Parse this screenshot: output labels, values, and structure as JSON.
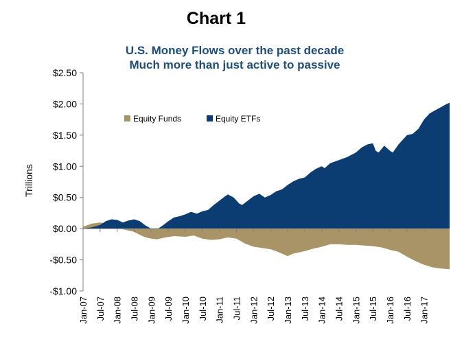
{
  "heading": "Chart 1",
  "chart_data": {
    "type": "area",
    "title": "U.S. Money Flows over the past decade",
    "subtitle": "Much more than just active to passive",
    "ylabel": "Trillions",
    "xlabel": "",
    "ylim": [
      -1.0,
      2.5
    ],
    "yticks": [
      2.5,
      2.0,
      1.5,
      1.0,
      0.5,
      0.0,
      -0.5,
      -1.0
    ],
    "ytick_labels": [
      "$2.50",
      "$2.00",
      "$1.50",
      "$1.00",
      "$0.50",
      "$0.00",
      "-$0.50",
      "-$1.00"
    ],
    "xticks": [
      "Jan-07",
      "Jul-07",
      "Jan-08",
      "Jul-08",
      "Jan-09",
      "Jul-09",
      "Jan-10",
      "Jul-10",
      "Jan-11",
      "Jul-11",
      "Jan-12",
      "Jul-12",
      "Jan-13",
      "Jul-13",
      "Jan-14",
      "Jul-14",
      "Jan-15",
      "Jul-15",
      "Jan-16",
      "Jul-16",
      "Jan-17"
    ],
    "grid": false,
    "legend_position": "upper-left",
    "series": [
      {
        "name": "Equity Funds",
        "color": "#A89467",
        "points": [
          [
            "Jan-07",
            0.03
          ],
          [
            "Apr-07",
            0.08
          ],
          [
            "Jul-07",
            0.1
          ],
          [
            "Sep-07",
            0.08
          ],
          [
            "Dec-07",
            0.02
          ],
          [
            "Apr-08",
            -0.02
          ],
          [
            "Jul-08",
            -0.05
          ],
          [
            "Sep-08",
            -0.1
          ],
          [
            "Nov-08",
            -0.14
          ],
          [
            "Jan-09",
            -0.16
          ],
          [
            "Mar-09",
            -0.17
          ],
          [
            "Jun-09",
            -0.14
          ],
          [
            "Sep-09",
            -0.12
          ],
          [
            "Jan-10",
            -0.13
          ],
          [
            "Apr-10",
            -0.11
          ],
          [
            "Jul-10",
            -0.16
          ],
          [
            "Oct-10",
            -0.18
          ],
          [
            "Jan-11",
            -0.17
          ],
          [
            "Apr-11",
            -0.14
          ],
          [
            "Jul-11",
            -0.16
          ],
          [
            "Oct-11",
            -0.24
          ],
          [
            "Jan-12",
            -0.29
          ],
          [
            "Apr-12",
            -0.31
          ],
          [
            "Jul-12",
            -0.33
          ],
          [
            "Oct-12",
            -0.38
          ],
          [
            "Jan-13",
            -0.44
          ],
          [
            "Mar-13",
            -0.4
          ],
          [
            "Jul-13",
            -0.36
          ],
          [
            "Oct-13",
            -0.32
          ],
          [
            "Jan-14",
            -0.29
          ],
          [
            "Apr-14",
            -0.25
          ],
          [
            "Jul-14",
            -0.25
          ],
          [
            "Oct-14",
            -0.26
          ],
          [
            "Jan-15",
            -0.26
          ],
          [
            "Apr-15",
            -0.27
          ],
          [
            "Jul-15",
            -0.28
          ],
          [
            "Oct-15",
            -0.3
          ],
          [
            "Jan-16",
            -0.34
          ],
          [
            "Apr-16",
            -0.37
          ],
          [
            "Jul-16",
            -0.45
          ],
          [
            "Oct-16",
            -0.52
          ],
          [
            "Jan-17",
            -0.58
          ],
          [
            "Apr-17",
            -0.62
          ],
          [
            "Jul-17",
            -0.64
          ],
          [
            "Oct-17",
            -0.65
          ]
        ]
      },
      {
        "name": "Equity ETFs",
        "color": "#0B3D73",
        "points": [
          [
            "Jan-07",
            0.0
          ],
          [
            "Apr-07",
            0.02
          ],
          [
            "Jul-07",
            0.06
          ],
          [
            "Sep-07",
            0.12
          ],
          [
            "Nov-07",
            0.15
          ],
          [
            "Jan-08",
            0.14
          ],
          [
            "Mar-08",
            0.1
          ],
          [
            "May-08",
            0.13
          ],
          [
            "Jul-08",
            0.15
          ],
          [
            "Sep-08",
            0.12
          ],
          [
            "Nov-08",
            0.05
          ],
          [
            "Jan-09",
            0.0
          ],
          [
            "Mar-09",
            -0.01
          ],
          [
            "May-09",
            0.05
          ],
          [
            "Jul-09",
            0.12
          ],
          [
            "Sep-09",
            0.18
          ],
          [
            "Nov-09",
            0.2
          ],
          [
            "Jan-10",
            0.23
          ],
          [
            "Mar-10",
            0.27
          ],
          [
            "May-10",
            0.24
          ],
          [
            "Jul-10",
            0.28
          ],
          [
            "Sep-10",
            0.3
          ],
          [
            "Nov-10",
            0.38
          ],
          [
            "Jan-11",
            0.45
          ],
          [
            "Mar-11",
            0.52
          ],
          [
            "Apr-11",
            0.55
          ],
          [
            "Jun-11",
            0.5
          ],
          [
            "Aug-11",
            0.4
          ],
          [
            "Sep-11",
            0.38
          ],
          [
            "Nov-11",
            0.45
          ],
          [
            "Jan-12",
            0.52
          ],
          [
            "Mar-12",
            0.56
          ],
          [
            "May-12",
            0.5
          ],
          [
            "Jul-12",
            0.54
          ],
          [
            "Sep-12",
            0.6
          ],
          [
            "Nov-12",
            0.63
          ],
          [
            "Jan-13",
            0.7
          ],
          [
            "Mar-13",
            0.76
          ],
          [
            "May-13",
            0.8
          ],
          [
            "Jul-13",
            0.82
          ],
          [
            "Sep-13",
            0.9
          ],
          [
            "Nov-13",
            0.96
          ],
          [
            "Jan-14",
            1.0
          ],
          [
            "Feb-14",
            0.97
          ],
          [
            "Apr-14",
            1.05
          ],
          [
            "Jul-14",
            1.1
          ],
          [
            "Oct-14",
            1.15
          ],
          [
            "Jan-15",
            1.22
          ],
          [
            "Mar-15",
            1.3
          ],
          [
            "May-15",
            1.35
          ],
          [
            "Jul-15",
            1.37
          ],
          [
            "Aug-15",
            1.25
          ],
          [
            "Sep-15",
            1.22
          ],
          [
            "Nov-15",
            1.33
          ],
          [
            "Jan-16",
            1.25
          ],
          [
            "Feb-16",
            1.22
          ],
          [
            "Apr-16",
            1.35
          ],
          [
            "Jun-16",
            1.45
          ],
          [
            "Jul-16",
            1.5
          ],
          [
            "Sep-16",
            1.52
          ],
          [
            "Nov-16",
            1.6
          ],
          [
            "Jan-17",
            1.75
          ],
          [
            "Mar-17",
            1.85
          ],
          [
            "May-17",
            1.9
          ],
          [
            "Jul-17",
            1.95
          ],
          [
            "Sep-17",
            2.0
          ],
          [
            "Oct-17",
            2.02
          ]
        ]
      }
    ]
  }
}
